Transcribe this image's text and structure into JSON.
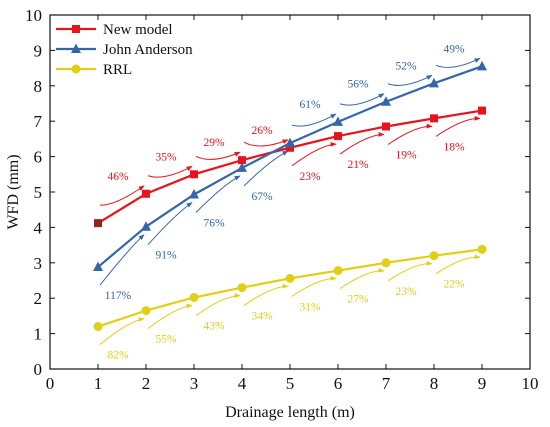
{
  "chart_data": {
    "type": "line",
    "title": "",
    "xlabel": "Drainage length  (m)",
    "ylabel": "WFD (mm)",
    "xlim": [
      0,
      10
    ],
    "ylim": [
      0,
      10
    ],
    "xticks": [
      0,
      1,
      2,
      3,
      4,
      5,
      6,
      7,
      8,
      9,
      10
    ],
    "yticks": [
      0,
      1,
      2,
      3,
      4,
      5,
      6,
      7,
      8,
      9,
      10
    ],
    "grid": false,
    "legend_position": "top-left",
    "x": [
      1,
      2,
      3,
      4,
      5,
      6,
      7,
      8,
      9
    ],
    "series": [
      {
        "name": "New model",
        "color": "#e8141c",
        "marker": "square",
        "values": [
          4.12,
          4.95,
          5.5,
          5.9,
          6.25,
          6.58,
          6.85,
          7.08,
          7.3
        ]
      },
      {
        "name": "John Anderson",
        "color": "#3567a8",
        "marker": "triangle",
        "values": [
          2.88,
          4.02,
          4.93,
          5.68,
          6.38,
          6.98,
          7.55,
          8.07,
          8.55
        ]
      },
      {
        "name": "RRL",
        "color": "#e1cf17",
        "marker": "circle",
        "values": [
          1.2,
          1.65,
          2.02,
          2.3,
          2.56,
          2.78,
          3.0,
          3.2,
          3.38
        ]
      }
    ],
    "annotations": [
      {
        "series": "New model",
        "labels": [
          "46%",
          "35%",
          "29%",
          "26%",
          "23%",
          "21%",
          "19%",
          "18%"
        ]
      },
      {
        "series": "John Anderson",
        "labels": [
          "117%",
          "91%",
          "76%",
          "67%",
          "61%",
          "56%",
          "52%",
          "49%"
        ]
      },
      {
        "series": "RRL",
        "labels": [
          "82%",
          "55%",
          "43%",
          "34%",
          "31%",
          "27%",
          "23%",
          "22%"
        ]
      }
    ]
  }
}
